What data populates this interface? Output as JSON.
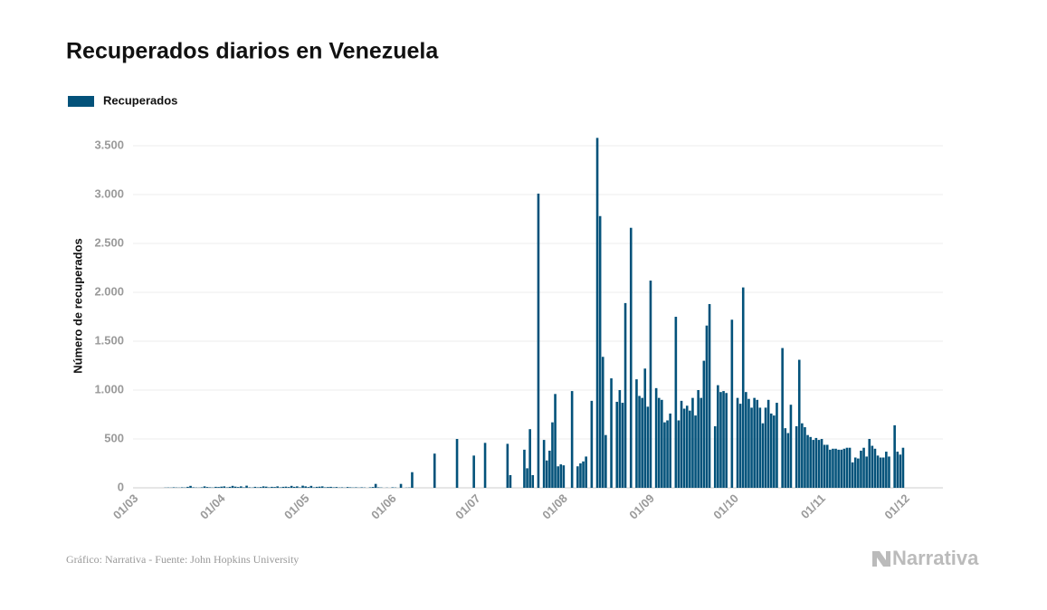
{
  "chart_data": {
    "type": "bar",
    "title": "Recuperados diarios en Venezuela",
    "y_label": "Número de recuperados",
    "source": "Gráfico: Narrativa - Fuente: John Hopkins University",
    "brand": "Narrativa",
    "legend": "top-left",
    "grid": true,
    "ylim": [
      0,
      3750
    ],
    "yticks": [
      0,
      500,
      {
        "value": 1000,
        "label": "1.000"
      },
      {
        "value": 1500,
        "label": "1.500"
      },
      {
        "value": 2000,
        "label": "2.000"
      },
      {
        "value": 2500,
        "label": "2.500"
      },
      {
        "value": 3000,
        "label": "3.000"
      },
      {
        "value": 3500,
        "label": "3.500"
      }
    ],
    "categories": [
      "01/03",
      null,
      null,
      null,
      null,
      null,
      null,
      null,
      null,
      null,
      null,
      null,
      null,
      null,
      null,
      null,
      null,
      null,
      null,
      null,
      null,
      null,
      null,
      null,
      null,
      null,
      null,
      null,
      null,
      null,
      null,
      "01/04",
      null,
      null,
      null,
      null,
      null,
      null,
      null,
      null,
      null,
      null,
      null,
      null,
      null,
      null,
      null,
      null,
      null,
      null,
      null,
      null,
      null,
      null,
      null,
      null,
      null,
      null,
      null,
      null,
      null,
      "01/05",
      null,
      null,
      null,
      null,
      null,
      null,
      null,
      null,
      null,
      null,
      null,
      null,
      null,
      null,
      null,
      null,
      null,
      null,
      null,
      null,
      null,
      null,
      null,
      null,
      null,
      null,
      null,
      null,
      null,
      null,
      "01/06",
      null,
      null,
      null,
      null,
      null,
      null,
      null,
      null,
      null,
      null,
      null,
      null,
      null,
      null,
      null,
      null,
      null,
      null,
      null,
      null,
      null,
      null,
      null,
      null,
      null,
      null,
      null,
      null,
      null,
      "01/07",
      null,
      null,
      null,
      null,
      null,
      null,
      null,
      null,
      null,
      null,
      null,
      null,
      null,
      null,
      null,
      null,
      null,
      null,
      null,
      null,
      null,
      null,
      null,
      null,
      null,
      null,
      null,
      null,
      null,
      null,
      "01/08",
      null,
      null,
      null,
      null,
      null,
      null,
      null,
      null,
      null,
      null,
      null,
      null,
      null,
      null,
      null,
      null,
      null,
      null,
      null,
      null,
      null,
      null,
      null,
      null,
      null,
      null,
      null,
      null,
      null,
      null,
      "01/09",
      null,
      null,
      null,
      null,
      null,
      null,
      null,
      null,
      null,
      null,
      null,
      null,
      null,
      null,
      null,
      null,
      null,
      null,
      null,
      null,
      null,
      null,
      null,
      null,
      null,
      null,
      null,
      null,
      null,
      "01/10",
      null,
      null,
      null,
      null,
      null,
      null,
      null,
      null,
      null,
      null,
      null,
      null,
      null,
      null,
      null,
      null,
      null,
      null,
      null,
      null,
      null,
      null,
      null,
      null,
      null,
      null,
      null,
      null,
      null,
      null,
      "01/11",
      null,
      null,
      null,
      null,
      null,
      null,
      null,
      null,
      null,
      null,
      null,
      null,
      null,
      null,
      null,
      null,
      null,
      null,
      null,
      null,
      null,
      null,
      null,
      null,
      null,
      null,
      null,
      null,
      null,
      "01/12"
    ],
    "series": [
      {
        "name": "Recuperados",
        "color": "#03527a",
        "values": [
          0,
          0,
          0,
          0,
          0,
          0,
          0,
          0,
          0,
          0,
          0,
          2,
          3,
          2,
          5,
          3,
          2,
          5,
          3,
          10,
          20,
          5,
          3,
          2,
          5,
          15,
          8,
          5,
          3,
          10,
          8,
          12,
          15,
          5,
          10,
          20,
          12,
          8,
          15,
          5,
          22,
          5,
          3,
          10,
          5,
          8,
          15,
          12,
          5,
          10,
          8,
          15,
          5,
          10,
          12,
          8,
          20,
          10,
          15,
          5,
          22,
          15,
          8,
          20,
          5,
          10,
          12,
          15,
          5,
          8,
          10,
          5,
          8,
          3,
          5,
          2,
          8,
          5,
          3,
          5,
          2,
          5,
          3,
          0,
          5,
          8,
          40,
          5,
          3,
          0,
          2,
          0,
          5,
          3,
          0,
          40,
          0,
          2,
          3,
          160,
          0,
          0,
          0,
          0,
          0,
          0,
          0,
          350,
          0,
          0,
          0,
          0,
          0,
          0,
          0,
          500,
          0,
          0,
          0,
          0,
          0,
          330,
          0,
          0,
          0,
          460,
          0,
          0,
          0,
          0,
          0,
          0,
          0,
          450,
          130,
          0,
          0,
          0,
          0,
          390,
          200,
          600,
          130,
          0,
          3010,
          0,
          490,
          280,
          380,
          670,
          960,
          220,
          240,
          230,
          0,
          0,
          990,
          0,
          220,
          250,
          270,
          320,
          0,
          890,
          0,
          3580,
          2780,
          1340,
          540,
          0,
          1120,
          0,
          880,
          1000,
          870,
          1890,
          0,
          2660,
          0,
          1110,
          940,
          920,
          1220,
          830,
          2120,
          0,
          1020,
          920,
          900,
          670,
          690,
          760,
          0,
          1750,
          690,
          890,
          810,
          840,
          790,
          920,
          740,
          1000,
          920,
          1300,
          1660,
          1880,
          0,
          630,
          1050,
          980,
          990,
          970,
          0,
          1720,
          0,
          920,
          860,
          2050,
          980,
          910,
          820,
          920,
          900,
          820,
          660,
          820,
          900,
          760,
          740,
          870,
          0,
          1430,
          610,
          560,
          850,
          0,
          630,
          1310,
          660,
          620,
          540,
          520,
          490,
          510,
          490,
          500,
          440,
          440,
          390,
          400,
          400,
          390,
          390,
          400,
          410,
          410,
          260,
          310,
          300,
          380,
          410,
          320,
          500,
          430,
          400,
          330,
          310,
          310,
          370,
          320,
          0,
          640,
          370,
          340,
          410,
          null
        ]
      }
    ]
  }
}
